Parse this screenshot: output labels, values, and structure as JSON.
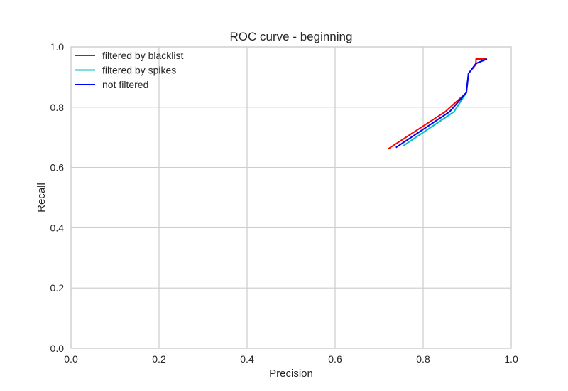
{
  "chart_data": {
    "type": "line",
    "title": "ROC curve - beginning",
    "xlabel": "Precision",
    "ylabel": "Recall",
    "xlim": [
      0.0,
      1.0
    ],
    "ylim": [
      0.0,
      1.0
    ],
    "xticks": [
      "0.0",
      "0.2",
      "0.4",
      "0.6",
      "0.8",
      "1.0"
    ],
    "yticks": [
      "0.0",
      "0.2",
      "0.4",
      "0.6",
      "0.8",
      "1.0"
    ],
    "grid": true,
    "legend_position": "upper-left",
    "series": [
      {
        "name": "filtered by blacklist",
        "color": "#ff0000",
        "x": [
          0.72,
          0.85,
          0.898,
          0.903,
          0.92,
          0.92,
          0.945
        ],
        "y": [
          0.661,
          0.785,
          0.848,
          0.912,
          0.942,
          0.96,
          0.96
        ]
      },
      {
        "name": "filtered by spikes",
        "color": "#00bfbf",
        "x": [
          0.755,
          0.87,
          0.898,
          0.903,
          0.92,
          0.945
        ],
        "y": [
          0.672,
          0.785,
          0.848,
          0.912,
          0.945,
          0.96
        ]
      },
      {
        "name": "not filtered",
        "color": "#0000ff",
        "x": [
          0.738,
          0.86,
          0.898,
          0.903,
          0.92,
          0.945
        ],
        "y": [
          0.666,
          0.785,
          0.848,
          0.912,
          0.945,
          0.96
        ]
      }
    ]
  }
}
